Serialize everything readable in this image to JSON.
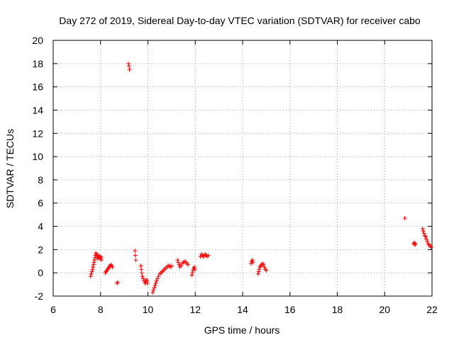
{
  "chart_data": {
    "type": "scatter",
    "title": "Day 272 of 2019, Sidereal Day-to-day VTEC variation (SDTVAR) for receiver cabo",
    "xlabel": "GPS time / hours",
    "ylabel": "SDTVAR / TECUs",
    "xlim": [
      6,
      22
    ],
    "ylim": [
      -2,
      20
    ],
    "xticks": [
      6,
      8,
      10,
      12,
      14,
      16,
      18,
      20,
      22
    ],
    "yticks": [
      -2,
      0,
      2,
      4,
      6,
      8,
      10,
      12,
      14,
      16,
      18,
      20
    ],
    "grid": true,
    "marker": "+",
    "color": "#ff0000",
    "series": [
      {
        "name": "SDTVAR",
        "points": [
          [
            7.58,
            -0.3
          ],
          [
            7.6,
            -0.1
          ],
          [
            7.63,
            0.1
          ],
          [
            7.66,
            0.3
          ],
          [
            7.68,
            0.5
          ],
          [
            7.7,
            0.7
          ],
          [
            7.72,
            0.9
          ],
          [
            7.74,
            1.1
          ],
          [
            7.76,
            1.3
          ],
          [
            7.78,
            1.5
          ],
          [
            7.8,
            1.7
          ],
          [
            7.83,
            1.6
          ],
          [
            7.86,
            1.4
          ],
          [
            7.88,
            1.2
          ],
          [
            7.9,
            1.4
          ],
          [
            7.92,
            1.5
          ],
          [
            7.95,
            1.3
          ],
          [
            7.98,
            1.2
          ],
          [
            8.0,
            1.4
          ],
          [
            8.02,
            1.3
          ],
          [
            8.04,
            1.1
          ],
          [
            8.2,
            0.0
          ],
          [
            8.23,
            0.1
          ],
          [
            8.26,
            0.2
          ],
          [
            8.3,
            0.3
          ],
          [
            8.33,
            0.4
          ],
          [
            8.36,
            0.5
          ],
          [
            8.4,
            0.6
          ],
          [
            8.43,
            0.7
          ],
          [
            8.46,
            0.6
          ],
          [
            8.5,
            0.5
          ],
          [
            8.7,
            -0.9
          ],
          [
            8.72,
            -0.8
          ],
          [
            9.18,
            18.0
          ],
          [
            9.2,
            17.8
          ],
          [
            9.22,
            17.5
          ],
          [
            9.45,
            1.9
          ],
          [
            9.47,
            1.5
          ],
          [
            9.49,
            1.1
          ],
          [
            9.7,
            0.6
          ],
          [
            9.72,
            0.3
          ],
          [
            9.74,
            0.0
          ],
          [
            9.76,
            -0.3
          ],
          [
            9.8,
            -0.5
          ],
          [
            9.84,
            -0.7
          ],
          [
            9.88,
            -0.9
          ],
          [
            9.9,
            -0.8
          ],
          [
            9.93,
            -0.6
          ],
          [
            9.96,
            -0.7
          ],
          [
            9.98,
            -0.9
          ],
          [
            10.2,
            -1.7
          ],
          [
            10.23,
            -1.5
          ],
          [
            10.26,
            -1.3
          ],
          [
            10.3,
            -1.1
          ],
          [
            10.33,
            -0.9
          ],
          [
            10.36,
            -0.7
          ],
          [
            10.4,
            -0.5
          ],
          [
            10.45,
            -0.3
          ],
          [
            10.5,
            -0.1
          ],
          [
            10.55,
            0.0
          ],
          [
            10.6,
            0.1
          ],
          [
            10.65,
            0.2
          ],
          [
            10.7,
            0.3
          ],
          [
            10.75,
            0.4
          ],
          [
            10.8,
            0.5
          ],
          [
            10.85,
            0.6
          ],
          [
            10.9,
            0.6
          ],
          [
            10.95,
            0.5
          ],
          [
            11.0,
            0.6
          ],
          [
            11.25,
            1.1
          ],
          [
            11.28,
            0.9
          ],
          [
            11.32,
            0.7
          ],
          [
            11.35,
            0.5
          ],
          [
            11.4,
            0.6
          ],
          [
            11.45,
            0.8
          ],
          [
            11.5,
            0.9
          ],
          [
            11.55,
            1.0
          ],
          [
            11.6,
            0.9
          ],
          [
            11.65,
            0.8
          ],
          [
            11.7,
            0.7
          ],
          [
            11.85,
            -0.2
          ],
          [
            11.88,
            0.0
          ],
          [
            11.9,
            0.2
          ],
          [
            11.93,
            0.4
          ],
          [
            11.96,
            0.5
          ],
          [
            11.98,
            0.3
          ],
          [
            12.22,
            1.4
          ],
          [
            12.26,
            1.6
          ],
          [
            12.3,
            1.5
          ],
          [
            12.34,
            1.4
          ],
          [
            12.38,
            1.5
          ],
          [
            12.42,
            1.6
          ],
          [
            12.46,
            1.5
          ],
          [
            12.5,
            1.4
          ],
          [
            12.55,
            1.5
          ],
          [
            14.35,
            0.8
          ],
          [
            14.38,
            1.0
          ],
          [
            14.41,
            1.1
          ],
          [
            14.43,
            0.9
          ],
          [
            14.65,
            -0.1
          ],
          [
            14.68,
            0.1
          ],
          [
            14.7,
            0.3
          ],
          [
            14.73,
            0.5
          ],
          [
            14.76,
            0.6
          ],
          [
            14.8,
            0.7
          ],
          [
            14.84,
            0.8
          ],
          [
            14.88,
            0.7
          ],
          [
            14.92,
            0.5
          ],
          [
            14.96,
            0.3
          ],
          [
            15.0,
            0.2
          ],
          [
            20.85,
            4.7
          ],
          [
            21.22,
            2.5
          ],
          [
            21.25,
            2.6
          ],
          [
            21.28,
            2.4
          ],
          [
            21.3,
            2.5
          ],
          [
            21.6,
            3.8
          ],
          [
            21.63,
            3.6
          ],
          [
            21.66,
            3.4
          ],
          [
            21.7,
            3.2
          ],
          [
            21.73,
            3.1
          ],
          [
            21.76,
            2.9
          ],
          [
            21.8,
            2.7
          ],
          [
            21.84,
            2.5
          ],
          [
            21.88,
            2.4
          ],
          [
            21.92,
            2.3
          ],
          [
            21.96,
            2.2
          ]
        ]
      }
    ]
  }
}
